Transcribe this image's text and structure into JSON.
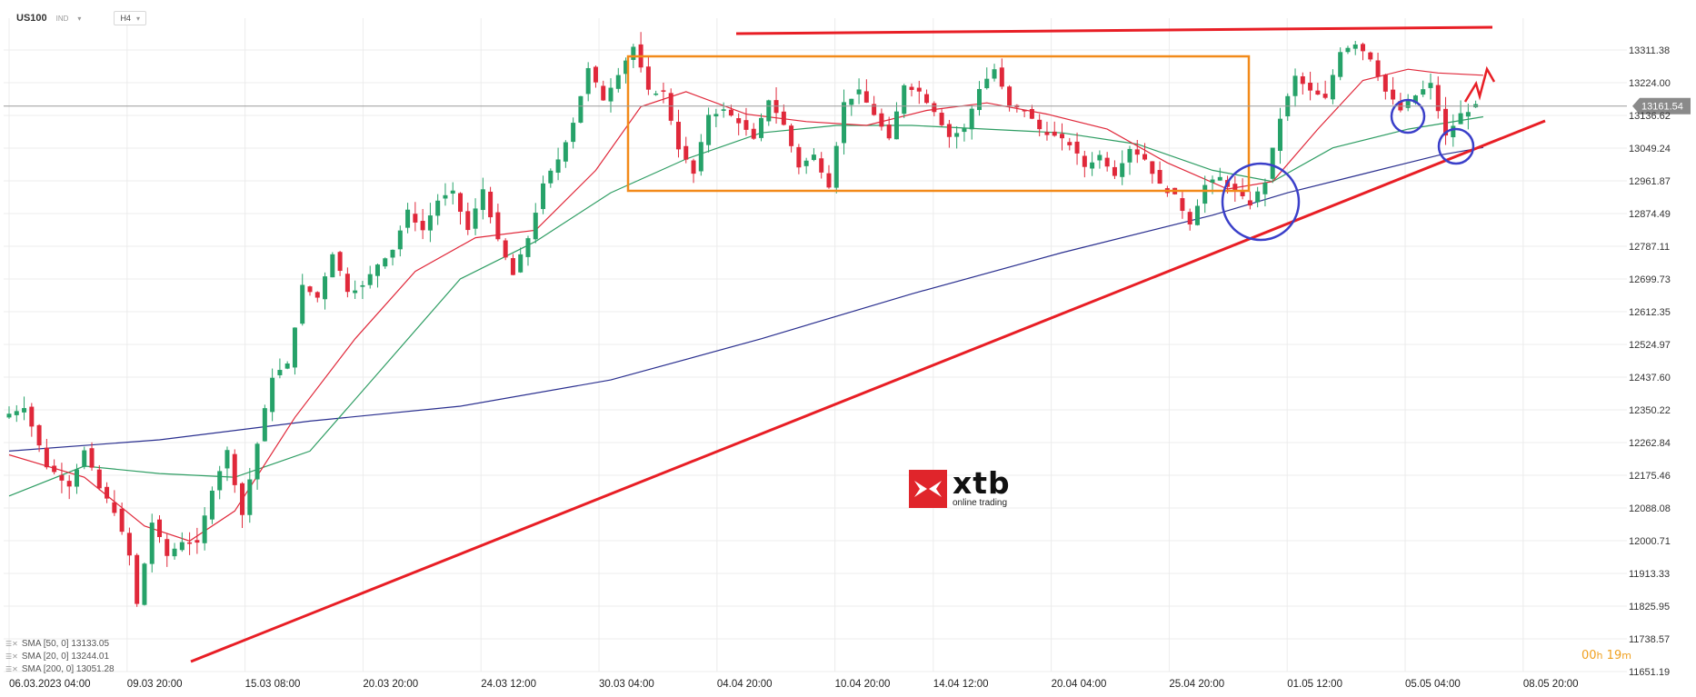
{
  "header": {
    "symbol": "US100",
    "class": "IND",
    "timeframe": "H4"
  },
  "legend": [
    "SMA [50, 0] 13133.05",
    "SMA [20, 0] 13244.01",
    "SMA [200, 0] 13051.28"
  ],
  "timer": {
    "h": "00",
    "h_unit": "h",
    "m": "19",
    "m_unit": "m"
  },
  "logo": {
    "brand": "xtb",
    "tagline": "online trading"
  },
  "colors": {
    "bull": "#26a269",
    "bear": "#e0283a",
    "sma20": "#e0283a",
    "sma50": "#2e9d63",
    "sma200": "#2a2f8f",
    "trend": "#e81e25",
    "range": "#f28a1a",
    "circle": "#3a3fc9",
    "grid": "#ececec",
    "price_line": "#9a9a9a",
    "price_badge": "#8a8a8a"
  },
  "chart_data": {
    "type": "candlestick",
    "y_ticks": [
      "13311.38",
      "13224.00",
      "13136.62",
      "13049.24",
      "12961.87",
      "12874.49",
      "12787.11",
      "12699.73",
      "12612.35",
      "12524.97",
      "12437.60",
      "12350.22",
      "12262.84",
      "12175.46",
      "12088.08",
      "12000.71",
      "11913.33",
      "11825.95",
      "11738.57",
      "11651.19"
    ],
    "ylim": [
      11651.19,
      13311.38
    ],
    "x_ticks": [
      "06.03.2023   04:00",
      "09.03   20:00",
      "15.03   08:00",
      "20.03   20:00",
      "24.03   12:00",
      "30.03   04:00",
      "04.04   20:00",
      "10.04   20:00",
      "14.04   12:00",
      "20.04   04:00",
      "25.04   20:00",
      "01.05   12:00",
      "05.05   04:00",
      "08.05   20:00"
    ],
    "bar_count": 120,
    "current_price": "13161.54",
    "current_price_value": 13161.54,
    "ohlc_path": [
      [
        0,
        12330
      ],
      [
        3,
        12360
      ],
      [
        6,
        12200
      ],
      [
        9,
        12150
      ],
      [
        11,
        12240
      ],
      [
        13,
        12140
      ],
      [
        15,
        12080
      ],
      [
        17,
        11960
      ],
      [
        18,
        11830
      ],
      [
        20,
        12050
      ],
      [
        22,
        11960
      ],
      [
        24,
        12000
      ],
      [
        26,
        11990
      ],
      [
        28,
        12140
      ],
      [
        30,
        12240
      ],
      [
        32,
        12070
      ],
      [
        34,
        12260
      ],
      [
        36,
        12440
      ],
      [
        38,
        12470
      ],
      [
        40,
        12680
      ],
      [
        42,
        12650
      ],
      [
        44,
        12770
      ],
      [
        46,
        12670
      ],
      [
        48,
        12680
      ],
      [
        50,
        12740
      ],
      [
        52,
        12780
      ],
      [
        54,
        12880
      ],
      [
        56,
        12830
      ],
      [
        58,
        12910
      ],
      [
        60,
        12930
      ],
      [
        62,
        12830
      ],
      [
        64,
        12940
      ],
      [
        66,
        12800
      ],
      [
        68,
        12710
      ],
      [
        70,
        12810
      ],
      [
        72,
        12950
      ],
      [
        74,
        13020
      ],
      [
        76,
        13120
      ],
      [
        78,
        13260
      ],
      [
        80,
        13180
      ],
      [
        82,
        13250
      ],
      [
        84,
        13320
      ],
      [
        86,
        13200
      ],
      [
        88,
        13200
      ],
      [
        90,
        13050
      ],
      [
        92,
        12980
      ],
      [
        94,
        13140
      ],
      [
        96,
        13150
      ],
      [
        98,
        13120
      ],
      [
        100,
        13070
      ],
      [
        102,
        13180
      ],
      [
        104,
        13110
      ],
      [
        106,
        13000
      ],
      [
        108,
        13030
      ],
      [
        110,
        12950
      ],
      [
        112,
        13170
      ],
      [
        114,
        13200
      ],
      [
        116,
        13140
      ],
      [
        118,
        13070
      ],
      [
        120,
        13220
      ],
      [
        122,
        13200
      ],
      [
        124,
        13150
      ],
      [
        126,
        13080
      ],
      [
        128,
        13100
      ],
      [
        130,
        13210
      ],
      [
        132,
        13260
      ],
      [
        134,
        13160
      ],
      [
        136,
        13150
      ],
      [
        138,
        13100
      ],
      [
        140,
        13080
      ],
      [
        142,
        13060
      ],
      [
        144,
        13000
      ],
      [
        146,
        13030
      ],
      [
        148,
        12980
      ],
      [
        150,
        13050
      ],
      [
        152,
        13020
      ],
      [
        154,
        12950
      ],
      [
        156,
        12920
      ],
      [
        158,
        12850
      ],
      [
        160,
        12950
      ],
      [
        162,
        12970
      ],
      [
        164,
        12930
      ],
      [
        166,
        12900
      ],
      [
        168,
        12960
      ],
      [
        170,
        13130
      ],
      [
        172,
        13240
      ],
      [
        174,
        13200
      ],
      [
        176,
        13180
      ],
      [
        178,
        13310
      ],
      [
        180,
        13330
      ],
      [
        182,
        13290
      ],
      [
        184,
        13200
      ],
      [
        186,
        13150
      ],
      [
        188,
        13190
      ],
      [
        190,
        13220
      ],
      [
        192,
        13080
      ],
      [
        194,
        13140
      ],
      [
        196,
        13161
      ]
    ],
    "sma20_path": [
      [
        0,
        12230
      ],
      [
        10,
        12170
      ],
      [
        18,
        12040
      ],
      [
        24,
        12000
      ],
      [
        30,
        12080
      ],
      [
        38,
        12330
      ],
      [
        46,
        12540
      ],
      [
        54,
        12720
      ],
      [
        62,
        12810
      ],
      [
        70,
        12830
      ],
      [
        78,
        12990
      ],
      [
        84,
        13160
      ],
      [
        90,
        13200
      ],
      [
        98,
        13140
      ],
      [
        106,
        13120
      ],
      [
        114,
        13110
      ],
      [
        122,
        13150
      ],
      [
        130,
        13170
      ],
      [
        138,
        13140
      ],
      [
        146,
        13100
      ],
      [
        154,
        13010
      ],
      [
        162,
        12940
      ],
      [
        168,
        12960
      ],
      [
        174,
        13100
      ],
      [
        180,
        13230
      ],
      [
        186,
        13260
      ],
      [
        190,
        13250
      ],
      [
        196,
        13244
      ]
    ],
    "sma50_path": [
      [
        0,
        12120
      ],
      [
        10,
        12200
      ],
      [
        20,
        12180
      ],
      [
        30,
        12170
      ],
      [
        40,
        12240
      ],
      [
        50,
        12470
      ],
      [
        60,
        12700
      ],
      [
        70,
        12800
      ],
      [
        80,
        12930
      ],
      [
        90,
        13020
      ],
      [
        100,
        13090
      ],
      [
        110,
        13110
      ],
      [
        120,
        13110
      ],
      [
        130,
        13100
      ],
      [
        140,
        13090
      ],
      [
        150,
        13060
      ],
      [
        160,
        12990
      ],
      [
        168,
        12960
      ],
      [
        176,
        13050
      ],
      [
        186,
        13100
      ],
      [
        196,
        13133
      ]
    ],
    "sma200_path": [
      [
        0,
        12240
      ],
      [
        20,
        12270
      ],
      [
        40,
        12320
      ],
      [
        60,
        12360
      ],
      [
        80,
        12430
      ],
      [
        100,
        12540
      ],
      [
        120,
        12660
      ],
      [
        140,
        12770
      ],
      [
        160,
        12870
      ],
      [
        170,
        12930
      ],
      [
        180,
        12980
      ],
      [
        190,
        13030
      ],
      [
        196,
        13051
      ]
    ],
    "x_tick_bars": [
      0,
      24,
      48,
      72,
      96,
      120,
      144,
      168,
      188,
      212,
      236,
      260,
      284,
      308
    ]
  }
}
